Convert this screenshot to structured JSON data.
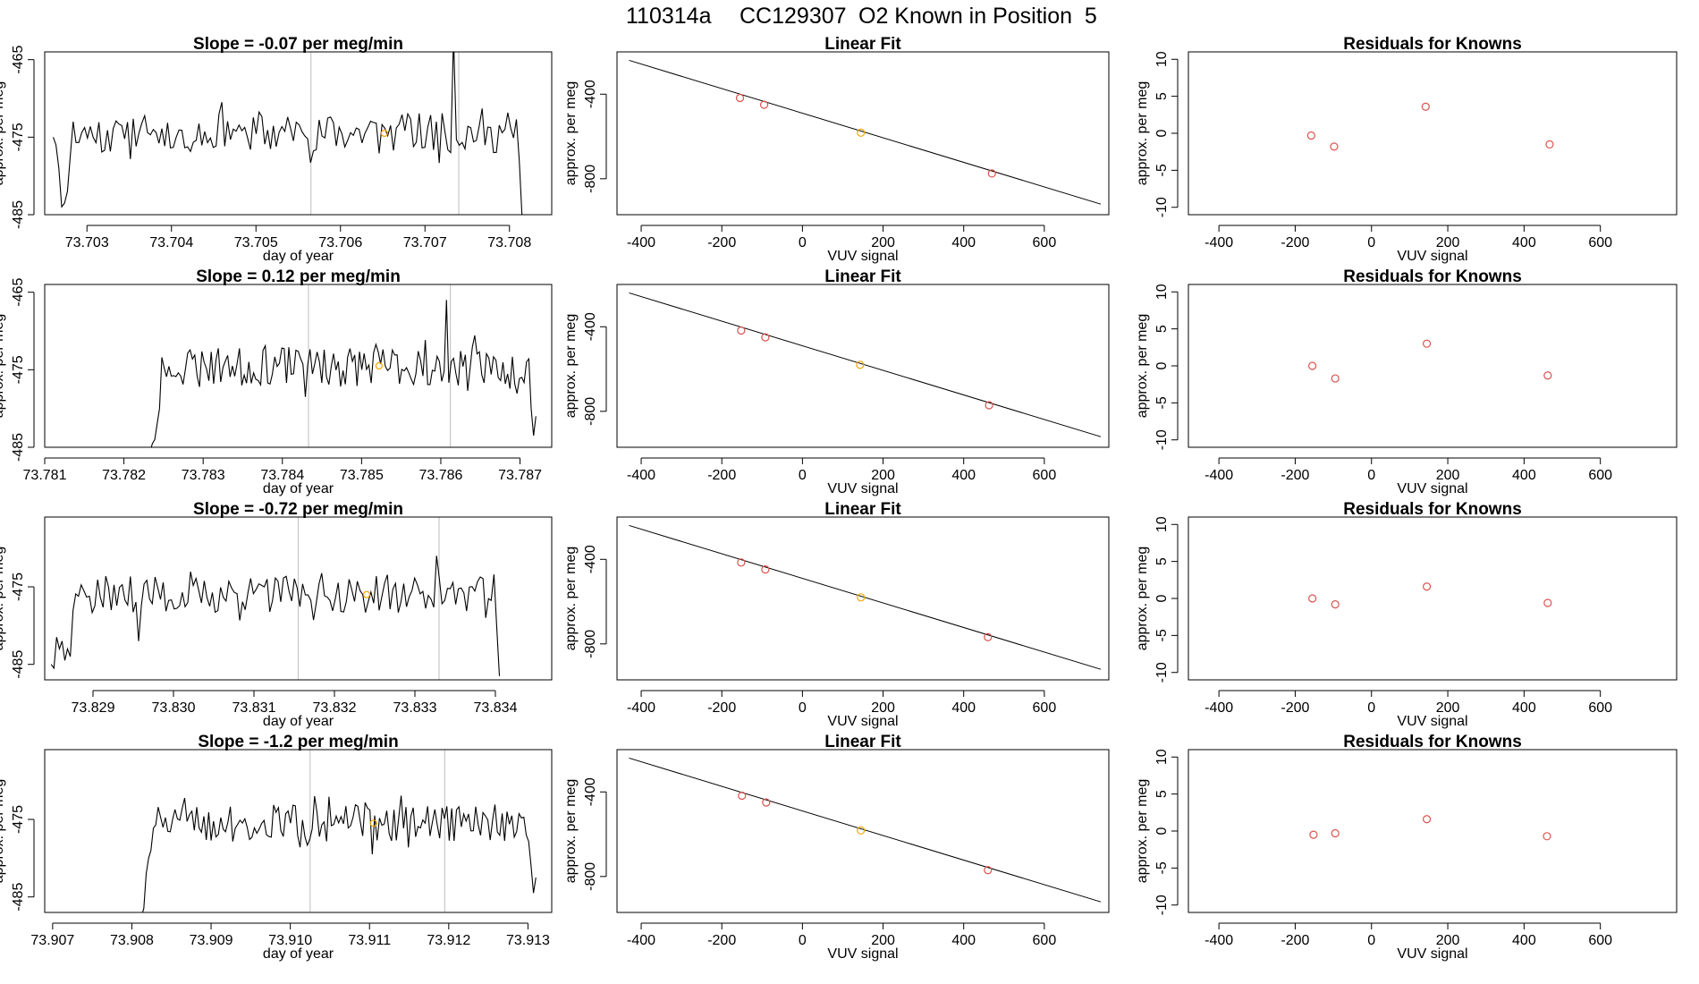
{
  "main_title": {
    "run_id": "110314a",
    "cylinder": "CC129307",
    "description": "O2 Known in Position  5"
  },
  "chart_data": [
    {
      "type": "line",
      "title": "Slope =  -0.07  per meg/min",
      "xlabel": "day of year",
      "ylabel": "approx. per meg",
      "xlim": [
        73.7025,
        73.7085
      ],
      "ylim": [
        -485,
        -464
      ],
      "xticks": [
        "73.703",
        "73.704",
        "73.705",
        "73.706",
        "73.707",
        "73.708"
      ],
      "yticks": [
        "-465",
        "-475",
        "-485"
      ],
      "vlines": [
        73.70565,
        73.7074
      ],
      "x_start": 73.7026,
      "x_end": 73.70815,
      "base": -474.5,
      "amp": 2.6,
      "seed": 11,
      "spikes": [
        [
          73.70735,
          -462
        ],
        [
          73.70458,
          -470.5
        ]
      ],
      "head": [
        -475,
        -476,
        -479,
        -484,
        -483.5,
        -482
      ],
      "tail_drop": [
        -478,
        -485.5
      ],
      "marker": [
        73.70652,
        -474.5
      ]
    },
    {
      "type": "scatter",
      "title": "Linear Fit",
      "xlabel": "VUV signal",
      "ylabel": "approx. per meg",
      "xlim": [
        -460,
        760
      ],
      "ylim": [
        -970,
        -200
      ],
      "xticks": [
        "-400",
        "-200",
        "0",
        "200",
        "400",
        "600"
      ],
      "yticks": [
        "-400",
        "-800"
      ],
      "line": [
        [
          -430,
          -240
        ],
        [
          740,
          -920
        ]
      ],
      "points": [
        [
          -155,
          -418
        ],
        [
          -95,
          -450
        ],
        [
          145,
          -582
        ],
        [
          470,
          -775
        ]
      ],
      "marker": [
        145,
        -582
      ]
    },
    {
      "type": "scatter",
      "title": "Residuals for Knowns",
      "xlabel": "VUV signal",
      "ylabel": "approx. per meg",
      "xlim": [
        -480,
        800
      ],
      "ylim": [
        -11,
        11
      ],
      "xticks": [
        "-400",
        "-200",
        "0",
        "200",
        "400",
        "600"
      ],
      "yticks": [
        "10",
        "5",
        "0",
        "-5",
        "-10"
      ],
      "points": [
        [
          -158,
          -0.3
        ],
        [
          -98,
          -1.8
        ],
        [
          142,
          3.6
        ],
        [
          467,
          -1.5
        ]
      ]
    },
    {
      "type": "line",
      "title": "Slope =  0.12  per meg/min",
      "xlabel": "day of year",
      "ylabel": "approx. per meg",
      "xlim": [
        73.781,
        73.7874
      ],
      "ylim": [
        -485,
        -464
      ],
      "xticks": [
        "73.781",
        "73.782",
        "73.783",
        "73.784",
        "73.785",
        "73.786",
        "73.787"
      ],
      "yticks": [
        "-465",
        "-475",
        "-485"
      ],
      "vlines": [
        73.78433,
        73.78612
      ],
      "x_start": 73.78233,
      "x_end": 73.7872,
      "base": -474.5,
      "amp": 2.6,
      "seed": 23,
      "spikes": [
        [
          73.78607,
          -466
        ],
        [
          73.7843,
          -478.5
        ]
      ],
      "head": [
        -485.5,
        -484.5,
        -484,
        -482,
        -480
      ],
      "tail_drop": [
        -480,
        -483.5,
        -481
      ],
      "marker": [
        73.78522,
        -474.5
      ]
    },
    {
      "type": "scatter",
      "title": "Linear Fit",
      "xlabel": "VUV signal",
      "ylabel": "approx. per meg",
      "xlim": [
        -460,
        760
      ],
      "ylim": [
        -970,
        -200
      ],
      "xticks": [
        "-400",
        "-200",
        "0",
        "200",
        "400",
        "600"
      ],
      "yticks": [
        "-400",
        "-800"
      ],
      "line": [
        [
          -430,
          -240
        ],
        [
          740,
          -920
        ]
      ],
      "points": [
        [
          -152,
          -418
        ],
        [
          -92,
          -450
        ],
        [
          143,
          -580
        ],
        [
          463,
          -771
        ]
      ],
      "marker": [
        143,
        -580
      ]
    },
    {
      "type": "scatter",
      "title": "Residuals for Knowns",
      "xlabel": "VUV signal",
      "ylabel": "approx. per meg",
      "xlim": [
        -480,
        800
      ],
      "ylim": [
        -11,
        11
      ],
      "xticks": [
        "-400",
        "-200",
        "0",
        "200",
        "400",
        "600"
      ],
      "yticks": [
        "10",
        "5",
        "0",
        "-5",
        "-10"
      ],
      "points": [
        [
          -155,
          0.0
        ],
        [
          -95,
          -1.7
        ],
        [
          145,
          3.0
        ],
        [
          462,
          -1.3
        ]
      ]
    },
    {
      "type": "line",
      "title": "Slope =  -0.72  per meg/min",
      "xlabel": "day of year",
      "ylabel": "approx. per meg",
      "xlim": [
        73.8284,
        73.8347
      ],
      "ylim": [
        -487,
        -466
      ],
      "xticks": [
        "73.829",
        "73.830",
        "73.831",
        "73.832",
        "73.833",
        "73.834"
      ],
      "yticks": [
        "-475",
        "-485"
      ],
      "vlines": [
        73.83155,
        73.8333
      ],
      "x_start": 73.82848,
      "x_end": 73.83405,
      "base": -476,
      "amp": 2.4,
      "seed": 37,
      "spikes": [
        [
          73.83326,
          -471
        ],
        [
          73.82958,
          -482
        ]
      ],
      "head": [
        -485,
        -485.5,
        -481.5,
        -483,
        -482,
        -484.5,
        -483,
        -484
      ],
      "tail_drop": [
        -480,
        -486.5
      ],
      "marker": [
        73.8324,
        -476
      ]
    },
    {
      "type": "scatter",
      "title": "Linear Fit",
      "xlabel": "VUV signal",
      "ylabel": "approx. per meg",
      "xlim": [
        -460,
        760
      ],
      "ylim": [
        -970,
        -200
      ],
      "xticks": [
        "-400",
        "-200",
        "0",
        "200",
        "400",
        "600"
      ],
      "yticks": [
        "-400",
        "-800"
      ],
      "line": [
        [
          -430,
          -240
        ],
        [
          740,
          -920
        ]
      ],
      "points": [
        [
          -152,
          -415
        ],
        [
          -92,
          -448
        ],
        [
          145,
          -580
        ],
        [
          460,
          -768
        ]
      ],
      "marker": [
        145,
        -580
      ]
    },
    {
      "type": "scatter",
      "title": "Residuals for Knowns",
      "xlabel": "VUV signal",
      "ylabel": "approx. per meg",
      "xlim": [
        -480,
        800
      ],
      "ylim": [
        -11,
        11
      ],
      "xticks": [
        "-400",
        "-200",
        "0",
        "200",
        "400",
        "600"
      ],
      "yticks": [
        "10",
        "5",
        "0",
        "-5",
        "-10"
      ],
      "points": [
        [
          -155,
          0.0
        ],
        [
          -95,
          -0.8
        ],
        [
          145,
          1.6
        ],
        [
          462,
          -0.6
        ]
      ]
    },
    {
      "type": "line",
      "title": "Slope =  -1.2  per meg/min",
      "xlabel": "day of year",
      "ylabel": "approx. per meg",
      "xlim": [
        73.9069,
        73.9133
      ],
      "ylim": [
        -487,
        -466
      ],
      "xticks": [
        "73.907",
        "73.908",
        "73.909",
        "73.910",
        "73.911",
        "73.912",
        "73.913"
      ],
      "yticks": [
        "-475",
        "-485"
      ],
      "vlines": [
        73.91025,
        73.91195
      ],
      "x_start": 73.90812,
      "x_end": 73.9131,
      "base": -475.5,
      "amp": 2.4,
      "seed": 51,
      "spikes": [
        [
          73.91032,
          -472
        ],
        [
          73.91103,
          -479.5
        ]
      ],
      "head": [
        -487.5,
        -486.5,
        -482,
        -480,
        -479
      ],
      "tail_drop": [
        -481,
        -484.5,
        -482.5
      ],
      "marker": [
        73.91105,
        -475.5
      ]
    },
    {
      "type": "scatter",
      "title": "Linear Fit",
      "xlabel": "VUV signal",
      "ylabel": "approx. per meg",
      "xlim": [
        -460,
        760
      ],
      "ylim": [
        -970,
        -200
      ],
      "xticks": [
        "-400",
        "-200",
        "0",
        "200",
        "400",
        "600"
      ],
      "yticks": [
        "-400",
        "-800"
      ],
      "line": [
        [
          -430,
          -240
        ],
        [
          740,
          -920
        ]
      ],
      "points": [
        [
          -150,
          -418
        ],
        [
          -90,
          -450
        ],
        [
          145,
          -582
        ],
        [
          460,
          -770
        ]
      ],
      "marker": [
        145,
        -582
      ]
    },
    {
      "type": "scatter",
      "title": "Residuals for Knowns",
      "xlabel": "VUV signal",
      "ylabel": "approx. per meg",
      "xlim": [
        -480,
        800
      ],
      "ylim": [
        -11,
        11
      ],
      "xticks": [
        "-400",
        "-200",
        "0",
        "200",
        "400",
        "600"
      ],
      "yticks": [
        "10",
        "5",
        "0",
        "-5",
        "-10"
      ],
      "points": [
        [
          -152,
          -0.5
        ],
        [
          -95,
          -0.3
        ],
        [
          145,
          1.6
        ],
        [
          460,
          -0.7
        ]
      ]
    }
  ]
}
